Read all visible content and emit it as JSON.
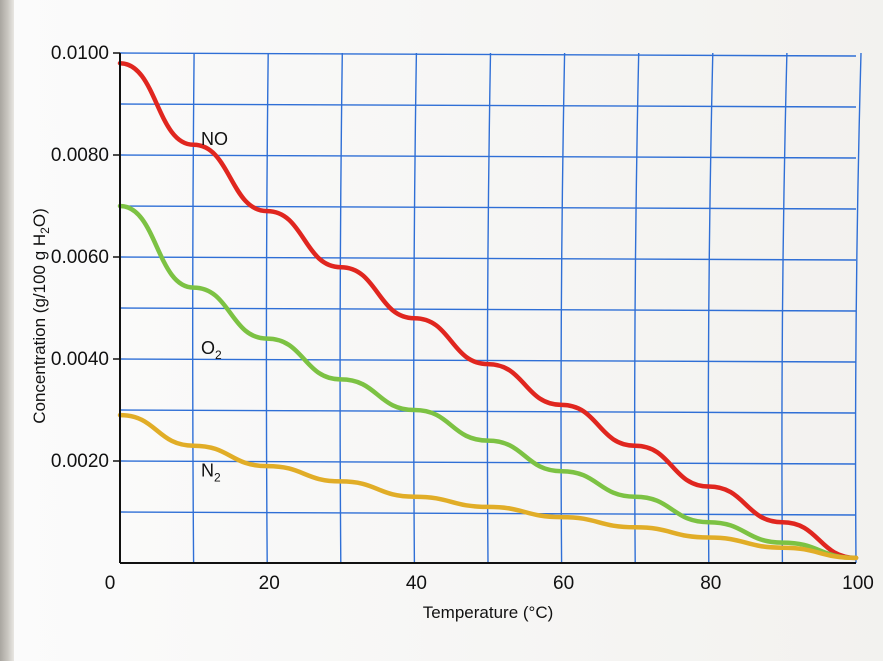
{
  "chart_data": {
    "type": "line",
    "title": "",
    "xlabel": "Temperature (°C)",
    "ylabel_parts": [
      "Concentration (g/100 g H",
      "2",
      "O)"
    ],
    "xlim": [
      0,
      100
    ],
    "ylim": [
      0,
      0.01
    ],
    "x_ticks": [
      0,
      20,
      40,
      60,
      80,
      100
    ],
    "x_tick_labels": [
      "0",
      "20",
      "40",
      "60",
      "80",
      "100"
    ],
    "y_ticks": [
      0.002,
      0.004,
      0.006,
      0.008,
      0.01
    ],
    "y_tick_labels": [
      "0.0020",
      "0.0040",
      "0.0060",
      "0.0080",
      "0.0100"
    ],
    "grid": true,
    "grid_x_step": 10,
    "grid_y_step": 0.001,
    "legend": "inline labels",
    "x": [
      0,
      10,
      20,
      30,
      40,
      50,
      60,
      70,
      80,
      90,
      100
    ],
    "series": [
      {
        "name": "NO",
        "label_parts": [
          "NO"
        ],
        "color": "#e0261f",
        "values": [
          0.0098,
          0.0082,
          0.0069,
          0.0058,
          0.0048,
          0.0039,
          0.0031,
          0.0023,
          0.0015,
          0.0008,
          0.0001
        ]
      },
      {
        "name": "O2",
        "label_parts": [
          "O",
          "2"
        ],
        "color": "#7cc243",
        "values": [
          0.007,
          0.0054,
          0.0044,
          0.0036,
          0.003,
          0.0024,
          0.0018,
          0.0013,
          0.0008,
          0.0004,
          0.0001
        ]
      },
      {
        "name": "N2",
        "label_parts": [
          "N",
          "2"
        ],
        "color": "#e1ad27",
        "values": [
          0.0029,
          0.0023,
          0.0019,
          0.0016,
          0.0013,
          0.0011,
          0.0009,
          0.0007,
          0.0005,
          0.0003,
          0.0001
        ]
      }
    ]
  }
}
